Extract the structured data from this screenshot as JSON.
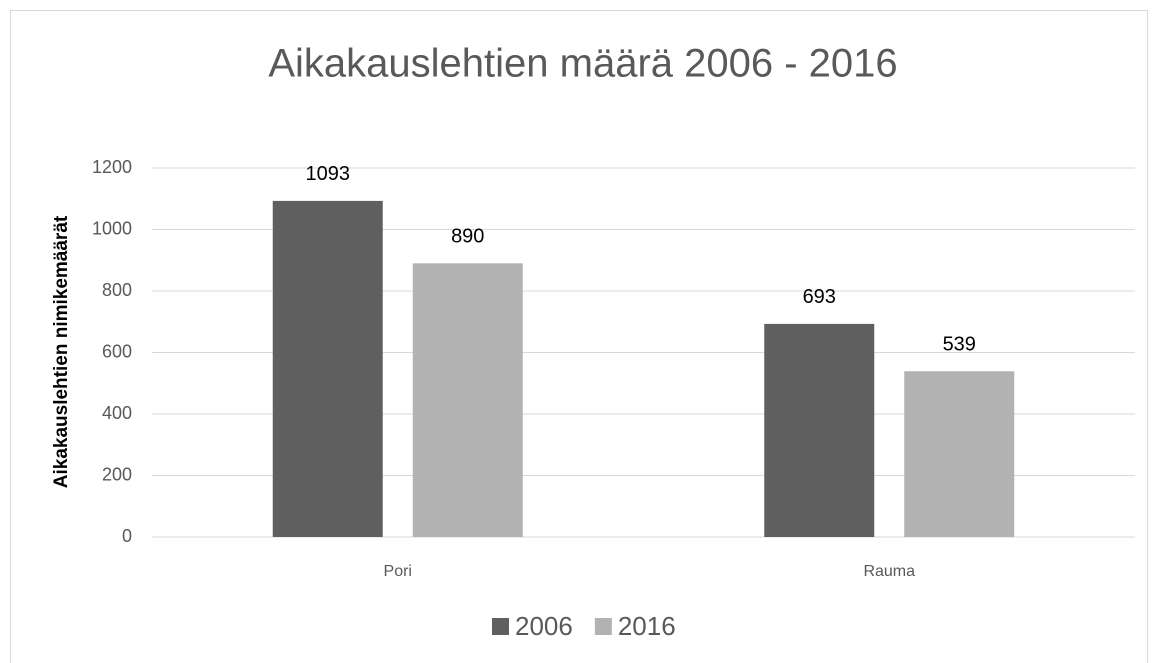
{
  "chart_data": {
    "type": "bar",
    "title": "Aikakauslehtien määrä 2006 - 2016",
    "y_label": "Aikakauslehtien nimikemäärät",
    "categories": [
      "Pori",
      "Rauma"
    ],
    "series": [
      {
        "name": "2006",
        "color": "#5f5f5f",
        "values": [
          1093,
          693
        ]
      },
      {
        "name": "2016",
        "color": "#b2b2b2",
        "values": [
          890,
          539
        ]
      }
    ],
    "ylim": [
      0,
      1200
    ],
    "yticks": [
      0,
      200,
      400,
      600,
      800,
      1000,
      1200
    ],
    "grid": true,
    "legend": "bottom"
  }
}
